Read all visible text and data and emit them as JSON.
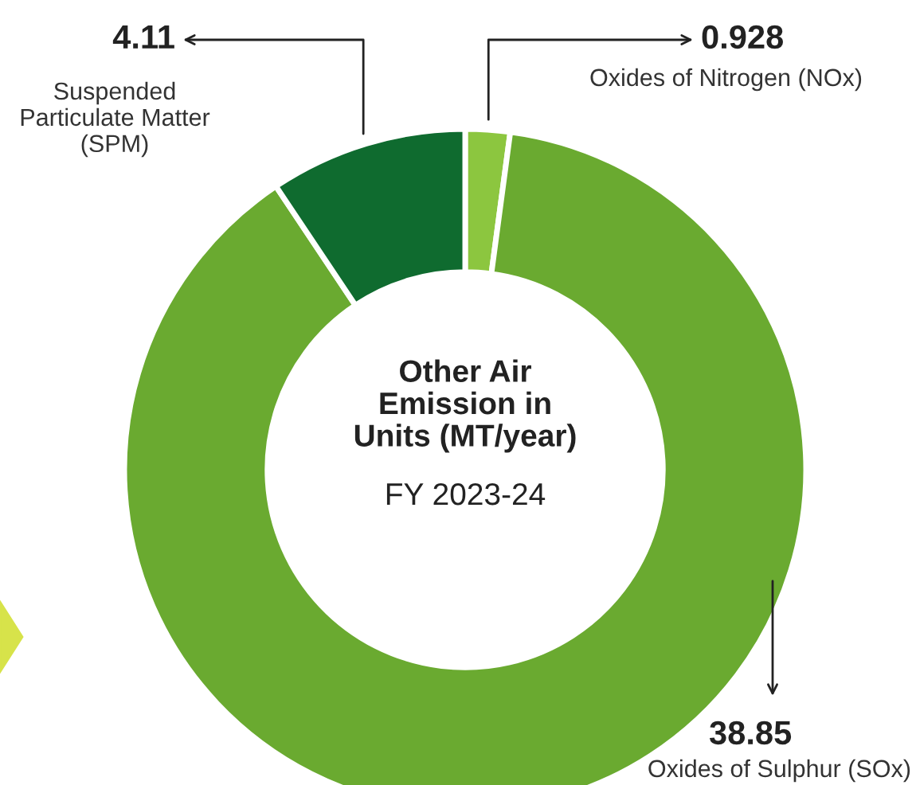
{
  "chart_data": {
    "type": "donut",
    "title": "Other Air Emission in Units (MT/year)",
    "subtitle": "FY 2023-24",
    "categories": [
      "Oxides of Nitrogen (NOx)",
      "Oxides of Sulphur (SOx)",
      "Suspended Particulate Matter (SPM)"
    ],
    "values": [
      0.928,
      38.85,
      4.11
    ],
    "colors": [
      "#8cc63f",
      "#6aaa30",
      "#0f6b2f"
    ],
    "data_labels": true
  }
}
